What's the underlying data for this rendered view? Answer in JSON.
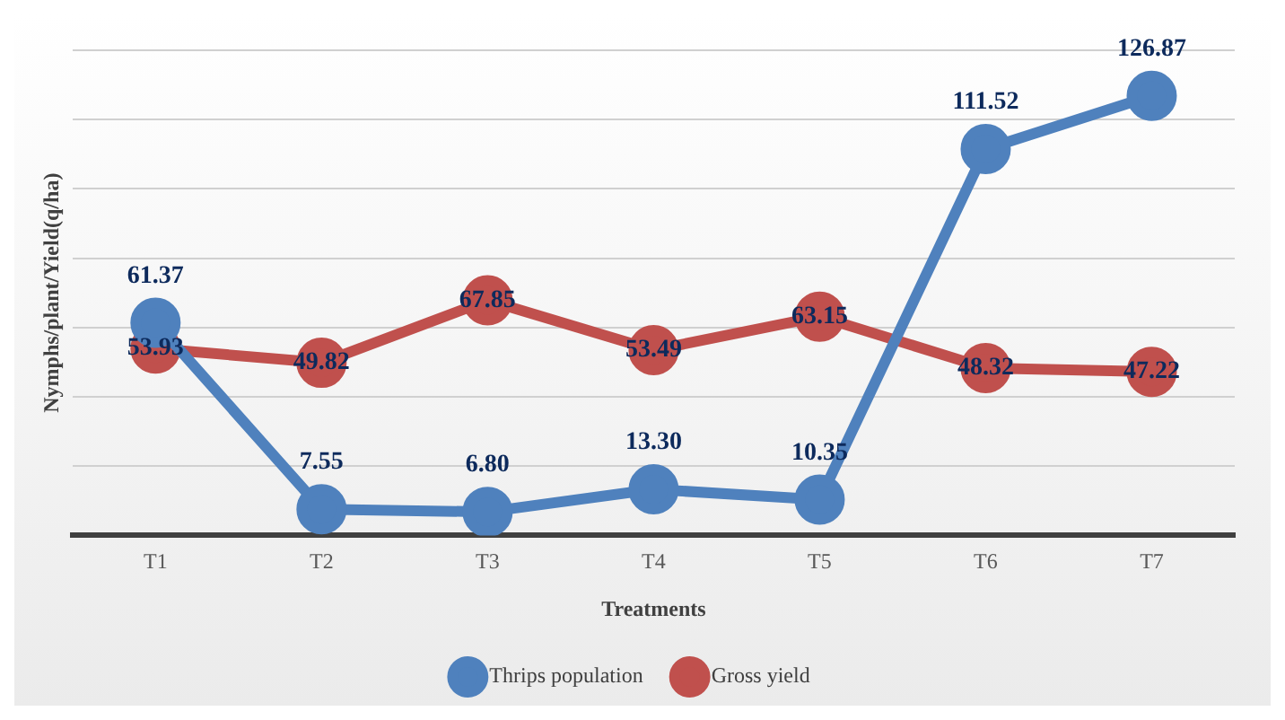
{
  "chart_data": {
    "type": "line",
    "xlabel": "Treatments",
    "ylabel": "Nymphs/plant/Yield(q/ha)",
    "categories": [
      "T1",
      "T2",
      "T3",
      "T4",
      "T5",
      "T6",
      "T7"
    ],
    "series": [
      {
        "name": "Thrips population",
        "color": "#4f81bd",
        "values": [
          61.37,
          7.55,
          6.8,
          13.3,
          10.35,
          111.52,
          126.87
        ],
        "value_labels": [
          "61.37",
          "7.55",
          "6.80",
          "13.30",
          "10.35",
          "111.52",
          "126.87"
        ]
      },
      {
        "name": "Gross yield",
        "color": "#c0504d",
        "values": [
          53.93,
          49.82,
          67.85,
          53.49,
          63.15,
          48.32,
          47.22
        ],
        "value_labels": [
          "53.93",
          "49.82",
          "67.85",
          "53.49",
          "63.15",
          "48.32",
          "47.22"
        ]
      }
    ],
    "ylim": [
      0,
      140
    ],
    "yticks": [
      {
        "value": 0,
        "label": null
      },
      {
        "value": 20,
        "label": null
      },
      {
        "value": 40,
        "label": null
      },
      {
        "value": 60,
        "label": null
      },
      {
        "value": 80,
        "label": null
      },
      {
        "value": 100,
        "label": null
      },
      {
        "value": 120,
        "label": null
      },
      {
        "value": 140,
        "label": null
      }
    ],
    "tick_labels": "x",
    "grid": "y",
    "legend": "bottom",
    "marker": "circle",
    "line_style": "solid"
  }
}
